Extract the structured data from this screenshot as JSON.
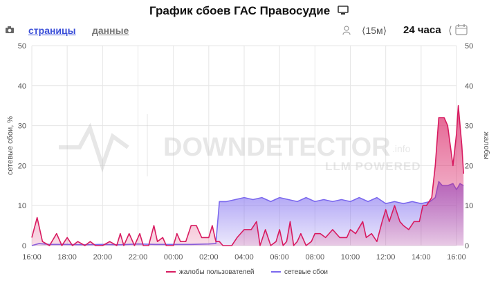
{
  "header": {
    "title": "График сбоев ГАС Правосудие",
    "monitor_icon": "monitor-icon"
  },
  "toolbar": {
    "camera_icon": "camera-icon",
    "tab_pages": "страницы",
    "tab_data": "данные",
    "user_icon": "user-icon",
    "period": "⟨15м⟩",
    "range": "24 часа",
    "calendar": "⟨",
    "calendar_icon": "calendar-icon"
  },
  "watermark": {
    "brand": "DOWNDETECTOR",
    "suffix": ".info",
    "sub": "LLM POWERED"
  },
  "chart_data": {
    "type": "area",
    "title": "",
    "ylabel_left": "сетевые сбои, %",
    "ylabel_right": "жалобы",
    "ylim": [
      0,
      50
    ],
    "y_ticks": [
      0,
      10,
      20,
      30,
      40,
      50
    ],
    "xlim_hours": [
      16,
      40
    ],
    "x_ticks": [
      "16:00",
      "18:00",
      "20:00",
      "22:00",
      "00:00",
      "02:00",
      "04:00",
      "06:00",
      "08:00",
      "10:00",
      "12:00",
      "14:00",
      "16:00"
    ],
    "grid": true,
    "legend_position": "bottom",
    "series": [
      {
        "name": "жалобы пользователей",
        "color": "#d81b60",
        "points": [
          [
            16.0,
            2
          ],
          [
            16.3,
            7
          ],
          [
            16.6,
            1
          ],
          [
            17.0,
            0
          ],
          [
            17.4,
            3
          ],
          [
            17.7,
            0
          ],
          [
            18.0,
            2
          ],
          [
            18.3,
            0
          ],
          [
            18.6,
            1
          ],
          [
            19.0,
            0
          ],
          [
            19.3,
            1
          ],
          [
            19.6,
            0
          ],
          [
            20.0,
            0
          ],
          [
            20.4,
            1
          ],
          [
            20.8,
            0
          ],
          [
            21.0,
            3
          ],
          [
            21.2,
            0
          ],
          [
            21.5,
            3
          ],
          [
            21.8,
            0
          ],
          [
            22.1,
            3
          ],
          [
            22.3,
            0
          ],
          [
            22.6,
            0
          ],
          [
            22.9,
            5
          ],
          [
            23.1,
            1
          ],
          [
            23.4,
            2
          ],
          [
            23.6,
            0
          ],
          [
            24.0,
            0
          ],
          [
            24.2,
            3
          ],
          [
            24.4,
            1
          ],
          [
            24.7,
            1
          ],
          [
            25.0,
            5
          ],
          [
            25.3,
            5
          ],
          [
            25.6,
            2
          ],
          [
            26.0,
            2
          ],
          [
            26.2,
            5
          ],
          [
            26.4,
            1
          ],
          [
            26.6,
            1
          ],
          [
            26.8,
            0
          ],
          [
            27.0,
            0
          ],
          [
            27.3,
            0
          ],
          [
            27.6,
            2
          ],
          [
            28.0,
            4
          ],
          [
            28.4,
            4
          ],
          [
            28.7,
            6
          ],
          [
            28.9,
            0
          ],
          [
            29.2,
            4
          ],
          [
            29.5,
            0
          ],
          [
            29.8,
            1
          ],
          [
            30.0,
            4
          ],
          [
            30.2,
            0
          ],
          [
            30.4,
            1
          ],
          [
            30.6,
            6
          ],
          [
            30.8,
            0
          ],
          [
            31.0,
            1
          ],
          [
            31.2,
            3
          ],
          [
            31.5,
            0
          ],
          [
            31.8,
            1
          ],
          [
            32.0,
            3
          ],
          [
            32.3,
            3
          ],
          [
            32.6,
            2
          ],
          [
            33.0,
            4
          ],
          [
            33.4,
            2
          ],
          [
            33.8,
            2
          ],
          [
            34.0,
            4
          ],
          [
            34.3,
            3
          ],
          [
            34.7,
            6
          ],
          [
            34.9,
            2
          ],
          [
            35.2,
            3
          ],
          [
            35.5,
            1
          ],
          [
            35.8,
            6
          ],
          [
            36.0,
            9
          ],
          [
            36.2,
            6
          ],
          [
            36.5,
            10
          ],
          [
            36.8,
            6
          ],
          [
            37.0,
            5
          ],
          [
            37.3,
            4
          ],
          [
            37.6,
            6
          ],
          [
            37.9,
            6
          ],
          [
            38.1,
            10
          ],
          [
            38.3,
            10
          ],
          [
            38.6,
            12
          ],
          [
            38.8,
            20
          ],
          [
            39.0,
            32
          ],
          [
            39.3,
            32
          ],
          [
            39.5,
            30
          ],
          [
            39.8,
            20
          ],
          [
            40.0,
            28
          ],
          [
            40.1,
            35
          ],
          [
            40.3,
            25
          ],
          [
            40.4,
            18
          ]
        ]
      },
      {
        "name": "сетевые сбои",
        "color": "#7b68ee",
        "points": [
          [
            16.0,
            0
          ],
          [
            16.4,
            0.5
          ],
          [
            17.0,
            0.3
          ],
          [
            18.0,
            0.3
          ],
          [
            19.0,
            0.2
          ],
          [
            20.0,
            0.3
          ],
          [
            21.0,
            0.2
          ],
          [
            22.0,
            0.4
          ],
          [
            23.0,
            0.3
          ],
          [
            24.0,
            0.3
          ],
          [
            25.0,
            0.3
          ],
          [
            26.0,
            0.4
          ],
          [
            26.4,
            0.5
          ],
          [
            26.6,
            11
          ],
          [
            27.0,
            11
          ],
          [
            27.5,
            11.5
          ],
          [
            28.0,
            12
          ],
          [
            28.5,
            11.5
          ],
          [
            29.0,
            12
          ],
          [
            29.5,
            11
          ],
          [
            30.0,
            12
          ],
          [
            30.5,
            11.5
          ],
          [
            31.0,
            11
          ],
          [
            31.5,
            12
          ],
          [
            32.0,
            11
          ],
          [
            32.5,
            11.5
          ],
          [
            33.0,
            11
          ],
          [
            33.5,
            11.5
          ],
          [
            34.0,
            11
          ],
          [
            34.5,
            12
          ],
          [
            35.0,
            11
          ],
          [
            35.5,
            12
          ],
          [
            36.0,
            10.5
          ],
          [
            36.5,
            11
          ],
          [
            37.0,
            10.5
          ],
          [
            37.5,
            11
          ],
          [
            38.0,
            10.5
          ],
          [
            38.5,
            11
          ],
          [
            38.8,
            12
          ],
          [
            39.0,
            16
          ],
          [
            39.2,
            15
          ],
          [
            39.5,
            15
          ],
          [
            39.8,
            15.5
          ],
          [
            40.0,
            14
          ],
          [
            40.2,
            15.5
          ],
          [
            40.4,
            15
          ]
        ]
      }
    ]
  }
}
